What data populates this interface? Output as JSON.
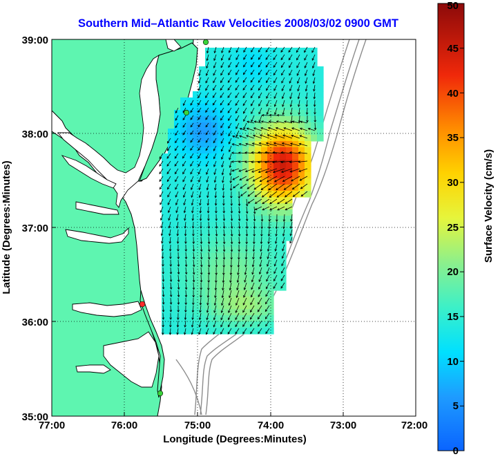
{
  "title": "Southern Mid–Atlantic Raw Velocities 2008/03/02 0900 GMT",
  "title_color": "#0000ff",
  "axes": {
    "xlabel": "Longitude (Degrees:Minutes)",
    "ylabel": "Latitude (Degrees:Minutes)",
    "xticks": [
      "77:00",
      "76:00",
      "75:00",
      "74:00",
      "73:00",
      "72:00"
    ],
    "yticks": [
      "39:00",
      "38:00",
      "37:00",
      "36:00",
      "35:00"
    ],
    "grid": "dotted"
  },
  "colorbar": {
    "label": "Surface Velocity (cm/s)",
    "ticks": [
      "0",
      "5",
      "10",
      "15",
      "20",
      "25",
      "30",
      "35",
      "40",
      "45",
      "50"
    ],
    "range": [
      0,
      50
    ],
    "colormap": "jet"
  },
  "colors": {
    "land": "#5ef5b0",
    "ocean": "#ffffff",
    "bathymetry": "#8c8c8c",
    "coastline": "#000000",
    "station_active": "#ff2a2a",
    "station_other": "#3ad43a"
  },
  "icons": {
    "station": "circle-marker"
  }
}
